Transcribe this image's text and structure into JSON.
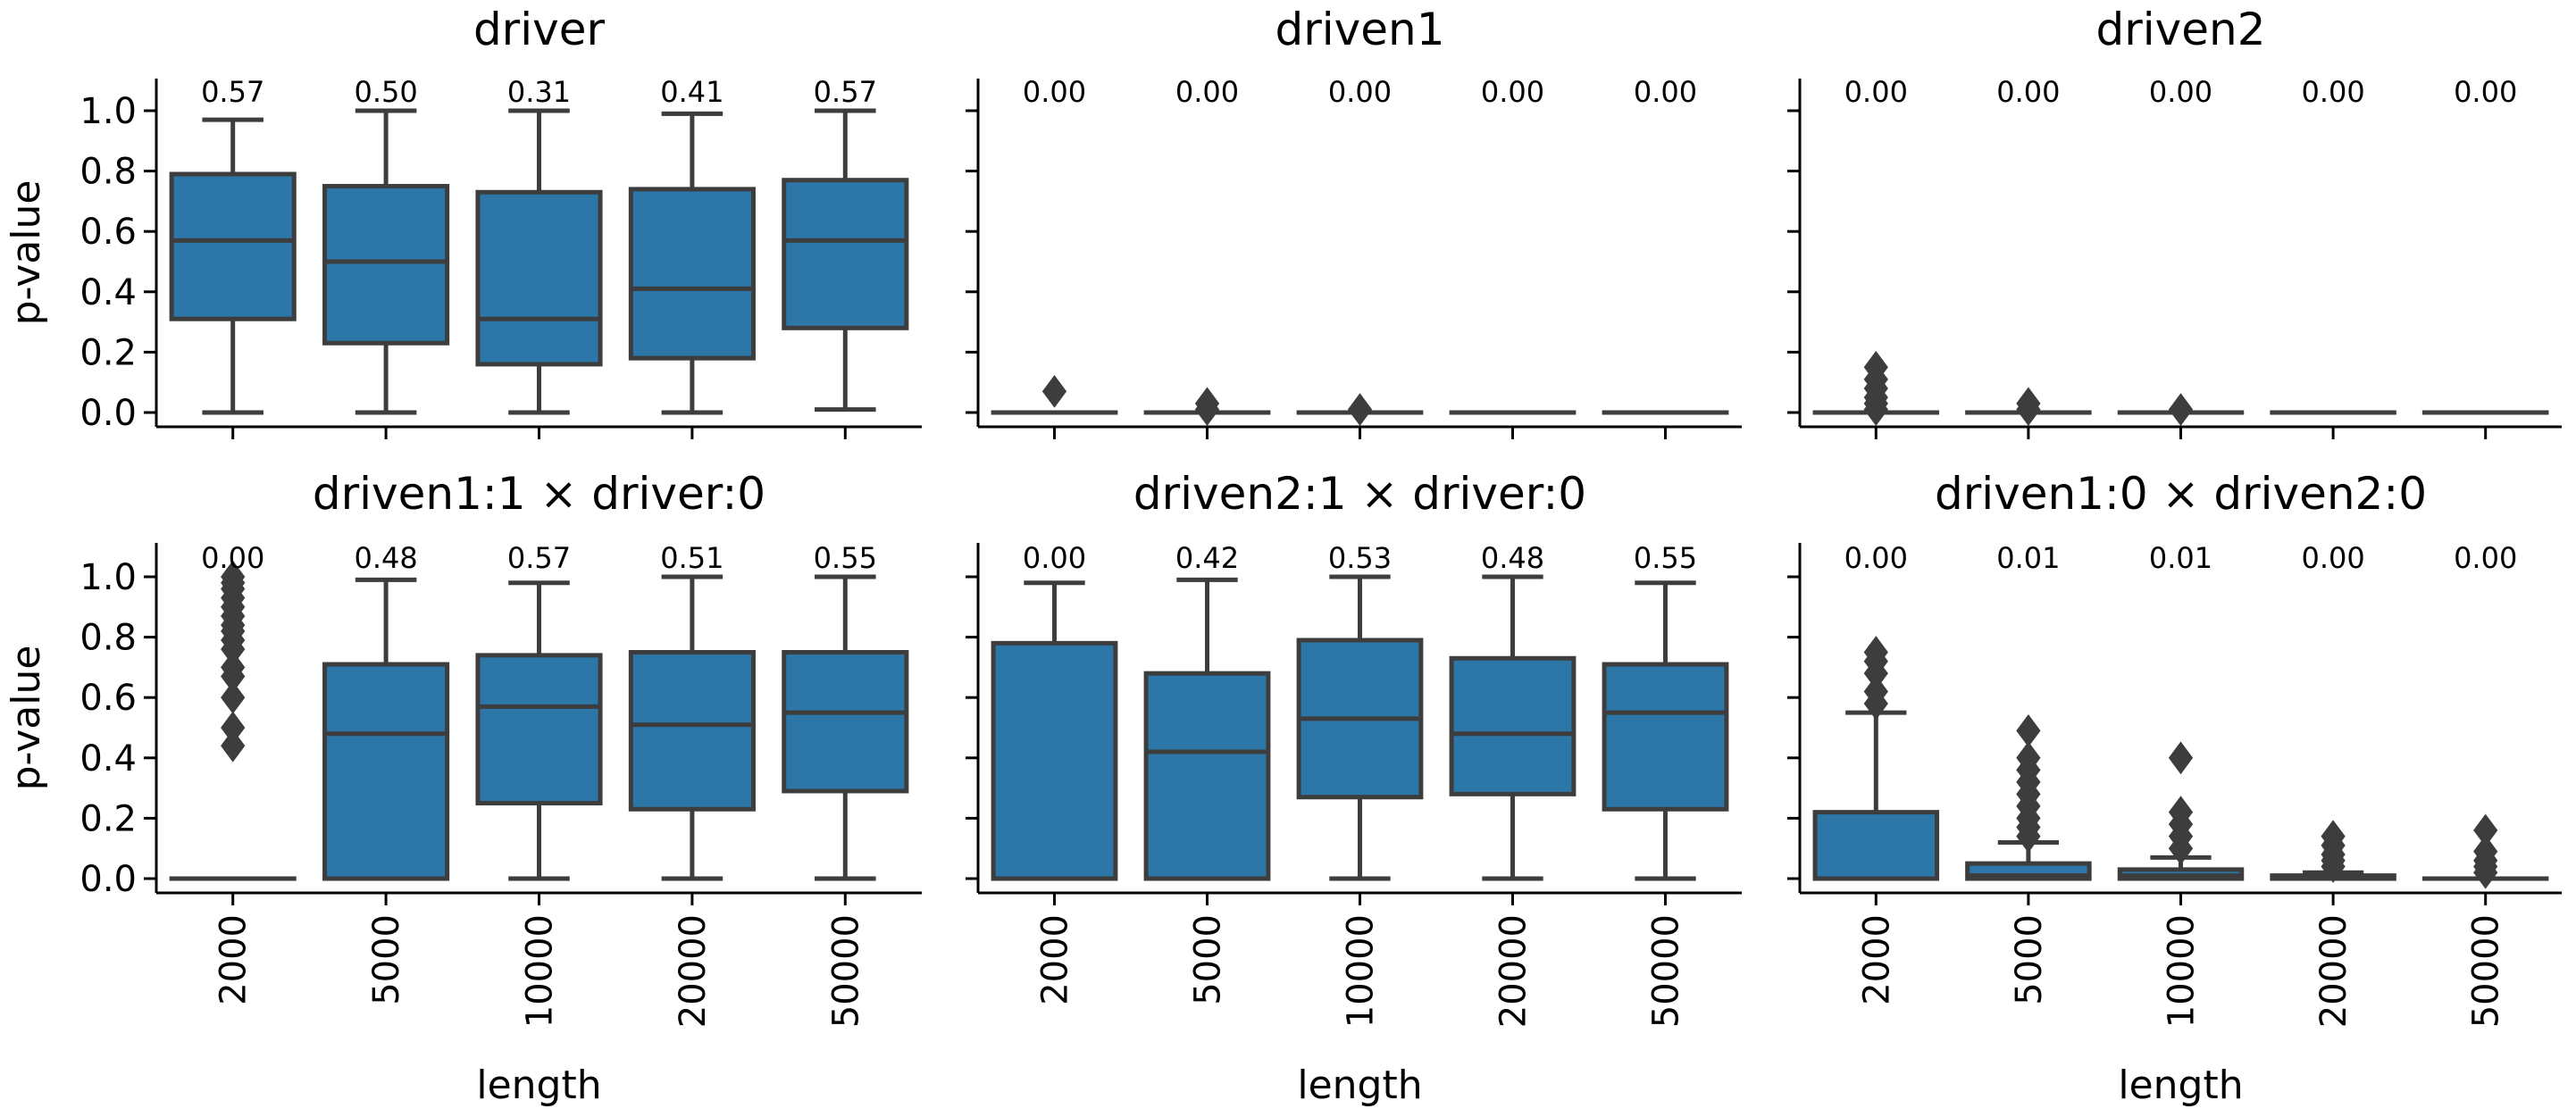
{
  "figure": {
    "box_color": "#2d76a8",
    "line_color": "#3d3d3d",
    "xlabel": "length",
    "ylabel": "p-value"
  },
  "chart_data": [
    {
      "type": "box",
      "title": "driver",
      "categories": [
        "2000",
        "5000",
        "10000",
        "20000",
        "50000"
      ],
      "ylim": [
        -0.05,
        1.1
      ],
      "yticks": [
        "0.0",
        "0.2",
        "0.4",
        "0.6",
        "0.8",
        "1.0"
      ],
      "median_labels": [
        "0.57",
        "0.50",
        "0.31",
        "0.41",
        "0.57"
      ],
      "boxes": [
        {
          "low": 0.0,
          "q1": 0.31,
          "median": 0.57,
          "q3": 0.79,
          "high": 0.97,
          "outliers": []
        },
        {
          "low": 0.0,
          "q1": 0.23,
          "median": 0.5,
          "q3": 0.75,
          "high": 1.0,
          "outliers": []
        },
        {
          "low": 0.0,
          "q1": 0.16,
          "median": 0.31,
          "q3": 0.73,
          "high": 1.0,
          "outliers": []
        },
        {
          "low": 0.0,
          "q1": 0.18,
          "median": 0.41,
          "q3": 0.74,
          "high": 0.99,
          "outliers": []
        },
        {
          "low": 0.01,
          "q1": 0.28,
          "median": 0.57,
          "q3": 0.77,
          "high": 1.0,
          "outliers": []
        }
      ]
    },
    {
      "type": "box",
      "title": "driven1",
      "categories": [
        "2000",
        "5000",
        "10000",
        "20000",
        "50000"
      ],
      "ylim": [
        -0.05,
        1.1
      ],
      "yticks": [
        "0.0",
        "0.2",
        "0.4",
        "0.6",
        "0.8",
        "1.0"
      ],
      "median_labels": [
        "0.00",
        "0.00",
        "0.00",
        "0.00",
        "0.00"
      ],
      "boxes": [
        {
          "low": 0.0,
          "q1": 0.0,
          "median": 0.0,
          "q3": 0.0,
          "high": 0.0,
          "outliers": [
            0.07
          ]
        },
        {
          "low": 0.0,
          "q1": 0.0,
          "median": 0.0,
          "q3": 0.0,
          "high": 0.0,
          "outliers": [
            0.03,
            0.01
          ]
        },
        {
          "low": 0.0,
          "q1": 0.0,
          "median": 0.0,
          "q3": 0.0,
          "high": 0.0,
          "outliers": [
            0.01
          ]
        },
        {
          "low": 0.0,
          "q1": 0.0,
          "median": 0.0,
          "q3": 0.0,
          "high": 0.0,
          "outliers": []
        },
        {
          "low": 0.0,
          "q1": 0.0,
          "median": 0.0,
          "q3": 0.0,
          "high": 0.0,
          "outliers": []
        }
      ]
    },
    {
      "type": "box",
      "title": "driven2",
      "categories": [
        "2000",
        "5000",
        "10000",
        "20000",
        "50000"
      ],
      "ylim": [
        -0.05,
        1.1
      ],
      "yticks": [
        "0.0",
        "0.2",
        "0.4",
        "0.6",
        "0.8",
        "1.0"
      ],
      "median_labels": [
        "0.00",
        "0.00",
        "0.00",
        "0.00",
        "0.00"
      ],
      "boxes": [
        {
          "low": 0.0,
          "q1": 0.0,
          "median": 0.0,
          "q3": 0.0,
          "high": 0.0,
          "outliers": [
            0.15,
            0.11,
            0.08,
            0.05,
            0.03,
            0.01
          ]
        },
        {
          "low": 0.0,
          "q1": 0.0,
          "median": 0.0,
          "q3": 0.0,
          "high": 0.0,
          "outliers": [
            0.03,
            0.01
          ]
        },
        {
          "low": 0.0,
          "q1": 0.0,
          "median": 0.0,
          "q3": 0.0,
          "high": 0.0,
          "outliers": [
            0.01
          ]
        },
        {
          "low": 0.0,
          "q1": 0.0,
          "median": 0.0,
          "q3": 0.0,
          "high": 0.0,
          "outliers": []
        },
        {
          "low": 0.0,
          "q1": 0.0,
          "median": 0.0,
          "q3": 0.0,
          "high": 0.0,
          "outliers": []
        }
      ]
    },
    {
      "type": "box",
      "title": "driven1:1 × driver:0",
      "categories": [
        "2000",
        "5000",
        "10000",
        "20000",
        "50000"
      ],
      "ylim": [
        -0.05,
        1.1
      ],
      "yticks": [
        "0.0",
        "0.2",
        "0.4",
        "0.6",
        "0.8",
        "1.0"
      ],
      "median_labels": [
        "0.00",
        "0.48",
        "0.57",
        "0.51",
        "0.55"
      ],
      "boxes": [
        {
          "low": 0.0,
          "q1": 0.0,
          "median": 0.0,
          "q3": 0.0,
          "high": 0.0,
          "outliers": [
            1.0,
            0.98,
            0.96,
            0.93,
            0.9,
            0.87,
            0.84,
            0.82,
            0.79,
            0.76,
            0.7,
            0.67,
            0.6,
            0.5,
            0.44
          ]
        },
        {
          "low": 0.0,
          "q1": 0.0,
          "median": 0.48,
          "q3": 0.71,
          "high": 0.99,
          "outliers": []
        },
        {
          "low": 0.0,
          "q1": 0.25,
          "median": 0.57,
          "q3": 0.74,
          "high": 0.98,
          "outliers": []
        },
        {
          "low": 0.0,
          "q1": 0.23,
          "median": 0.51,
          "q3": 0.75,
          "high": 1.0,
          "outliers": []
        },
        {
          "low": 0.0,
          "q1": 0.29,
          "median": 0.55,
          "q3": 0.75,
          "high": 1.0,
          "outliers": []
        }
      ]
    },
    {
      "type": "box",
      "title": "driven2:1 × driver:0",
      "categories": [
        "2000",
        "5000",
        "10000",
        "20000",
        "50000"
      ],
      "ylim": [
        -0.05,
        1.1
      ],
      "yticks": [
        "0.0",
        "0.2",
        "0.4",
        "0.6",
        "0.8",
        "1.0"
      ],
      "median_labels": [
        "0.00",
        "0.42",
        "0.53",
        "0.48",
        "0.55"
      ],
      "boxes": [
        {
          "low": 0.0,
          "q1": 0.0,
          "median": 0.0,
          "q3": 0.78,
          "high": 0.98,
          "outliers": []
        },
        {
          "low": 0.0,
          "q1": 0.0,
          "median": 0.42,
          "q3": 0.68,
          "high": 0.99,
          "outliers": []
        },
        {
          "low": 0.0,
          "q1": 0.27,
          "median": 0.53,
          "q3": 0.79,
          "high": 1.0,
          "outliers": []
        },
        {
          "low": 0.0,
          "q1": 0.28,
          "median": 0.48,
          "q3": 0.73,
          "high": 1.0,
          "outliers": []
        },
        {
          "low": 0.0,
          "q1": 0.23,
          "median": 0.55,
          "q3": 0.71,
          "high": 0.98,
          "outliers": []
        }
      ]
    },
    {
      "type": "box",
      "title": "driven1:0 × driven2:0",
      "categories": [
        "2000",
        "5000",
        "10000",
        "20000",
        "50000"
      ],
      "ylim": [
        -0.05,
        1.1
      ],
      "yticks": [
        "0.0",
        "0.2",
        "0.4",
        "0.6",
        "0.8",
        "1.0"
      ],
      "median_labels": [
        "0.00",
        "0.01",
        "0.01",
        "0.00",
        "0.00"
      ],
      "boxes": [
        {
          "low": 0.0,
          "q1": 0.0,
          "median": 0.0,
          "q3": 0.22,
          "high": 0.55,
          "outliers": [
            0.75,
            0.72,
            0.68,
            0.62,
            0.58
          ]
        },
        {
          "low": 0.0,
          "q1": 0.0,
          "median": 0.01,
          "q3": 0.05,
          "high": 0.12,
          "outliers": [
            0.49,
            0.4,
            0.36,
            0.32,
            0.28,
            0.24,
            0.2,
            0.17,
            0.14
          ]
        },
        {
          "low": 0.0,
          "q1": 0.0,
          "median": 0.01,
          "q3": 0.03,
          "high": 0.07,
          "outliers": [
            0.4,
            0.22,
            0.18,
            0.14,
            0.1
          ]
        },
        {
          "low": 0.0,
          "q1": 0.0,
          "median": 0.0,
          "q3": 0.01,
          "high": 0.02,
          "outliers": [
            0.14,
            0.11,
            0.08,
            0.06,
            0.04
          ]
        },
        {
          "low": 0.0,
          "q1": 0.0,
          "median": 0.0,
          "q3": 0.0,
          "high": 0.0,
          "outliers": [
            0.16,
            0.09,
            0.06,
            0.04,
            0.02
          ]
        }
      ]
    }
  ]
}
